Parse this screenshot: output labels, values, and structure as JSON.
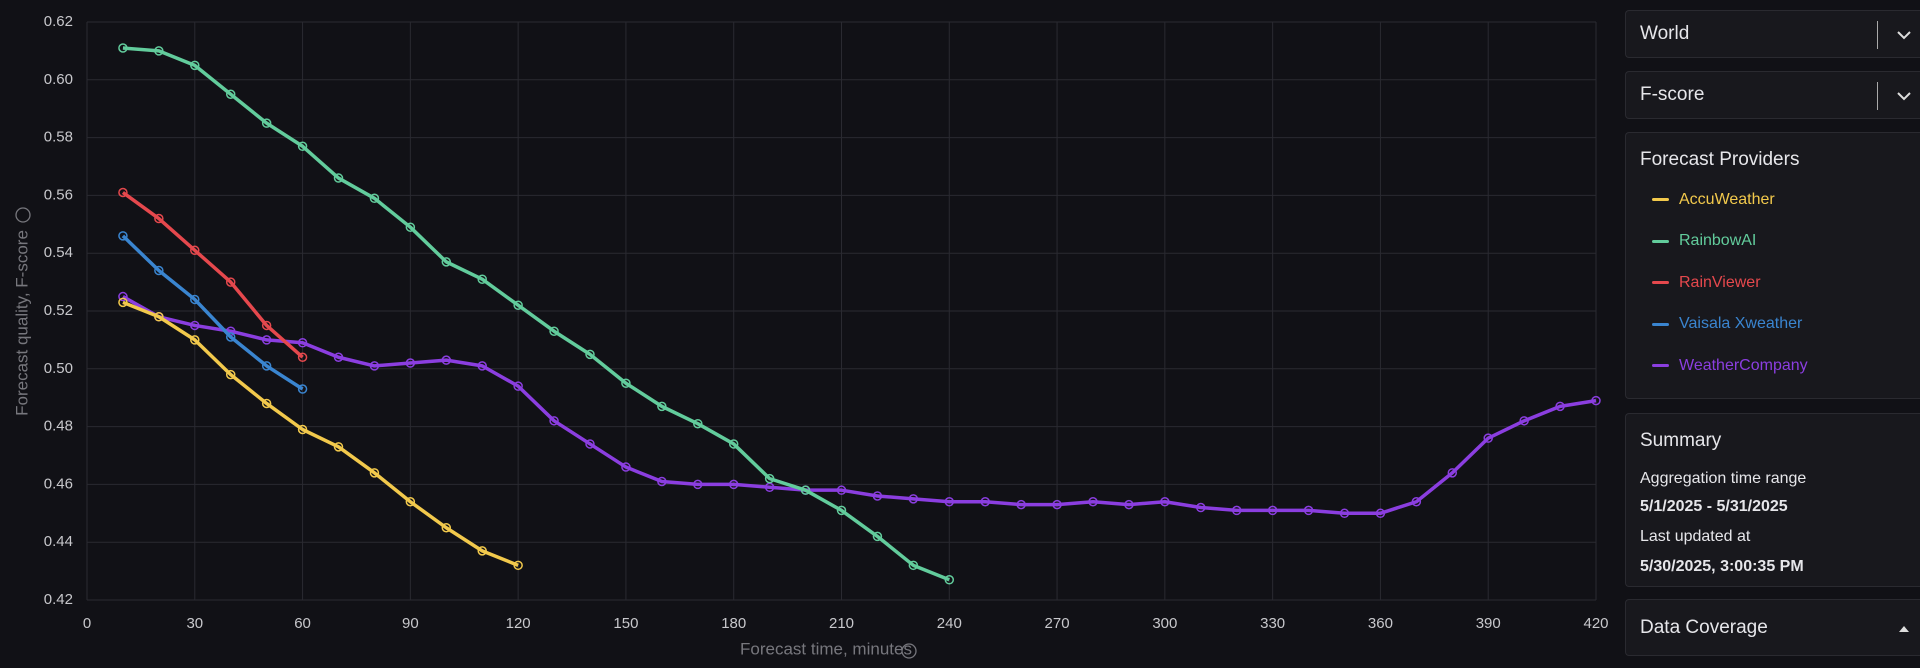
{
  "chart_data": {
    "type": "line",
    "xlabel": "Forecast time, minutes",
    "ylabel": "Forecast quality, F-score",
    "xlim": [
      0,
      420
    ],
    "xticks": [
      0,
      30,
      60,
      90,
      120,
      150,
      180,
      210,
      240,
      270,
      300,
      330,
      360,
      390,
      420
    ],
    "ylim": [
      0.42,
      0.62
    ],
    "yticks": [
      0.42,
      0.44,
      0.46,
      0.48,
      {
        "value": 0.5,
        "label": "0.50"
      },
      0.52,
      0.54,
      0.56,
      0.58,
      {
        "value": 0.6,
        "label": "0.60"
      },
      0.62
    ],
    "grid": true,
    "series": [
      {
        "name": "AccuWeather",
        "color": "#f2c94c",
        "x": [
          10,
          20,
          30,
          40,
          50,
          60,
          70,
          80,
          90,
          100,
          110,
          120
        ],
        "values": [
          0.523,
          0.518,
          0.51,
          0.498,
          0.488,
          0.479,
          0.473,
          0.464,
          0.454,
          0.445,
          0.437,
          0.432
        ]
      },
      {
        "name": "RainbowAI",
        "color": "#62cc9c",
        "x": [
          10,
          20,
          30,
          40,
          50,
          60,
          70,
          80,
          90,
          100,
          110,
          120,
          130,
          140,
          150,
          160,
          170,
          180,
          190,
          200,
          210,
          220,
          230,
          240
        ],
        "values": [
          0.611,
          0.61,
          0.605,
          0.595,
          0.585,
          0.577,
          0.566,
          0.559,
          0.549,
          0.537,
          0.531,
          0.522,
          0.513,
          0.505,
          0.495,
          0.487,
          0.481,
          0.474,
          0.462,
          0.458,
          0.451,
          0.442,
          0.432,
          0.427
        ]
      },
      {
        "name": "RainViewer",
        "color": "#e5484d",
        "x": [
          10,
          20,
          30,
          40,
          50,
          60
        ],
        "values": [
          0.561,
          0.552,
          0.541,
          0.53,
          0.515,
          0.504
        ]
      },
      {
        "name": "Vaisala Xweather",
        "color": "#3a85d0",
        "x": [
          10,
          20,
          30,
          40,
          50,
          60
        ],
        "values": [
          0.546,
          0.534,
          0.524,
          0.511,
          0.501,
          0.493
        ]
      },
      {
        "name": "WeatherCompany",
        "color": "#8b3ee0",
        "x": [
          10,
          20,
          30,
          40,
          50,
          60,
          70,
          80,
          90,
          100,
          110,
          120,
          130,
          140,
          150,
          160,
          170,
          180,
          190,
          200,
          210,
          220,
          230,
          240,
          250,
          260,
          270,
          280,
          290,
          300,
          310,
          320,
          330,
          340,
          350,
          360,
          370,
          380,
          390,
          400,
          410,
          420
        ],
        "values": [
          0.525,
          0.518,
          0.515,
          0.513,
          0.51,
          0.509,
          0.504,
          0.501,
          0.502,
          0.503,
          0.501,
          0.494,
          0.482,
          0.474,
          0.466,
          0.461,
          0.46,
          0.46,
          0.459,
          0.458,
          0.458,
          0.456,
          0.455,
          0.454,
          0.454,
          0.453,
          0.453,
          0.454,
          0.453,
          0.454,
          0.452,
          0.451,
          0.451,
          0.451,
          0.45,
          0.45,
          0.454,
          0.464,
          0.476,
          0.482,
          0.487,
          0.489
        ]
      }
    ]
  },
  "sidebar": {
    "region": "World",
    "metric": "F-score",
    "providers_title": "Forecast Providers",
    "summary": {
      "title": "Summary",
      "range_label": "Aggregation time range",
      "range": "5/1/2025 - 5/31/2025",
      "updated_label": "Last updated at",
      "updated": "5/30/2025, 3:00:35 PM"
    },
    "coverage_title": "Data Coverage"
  }
}
